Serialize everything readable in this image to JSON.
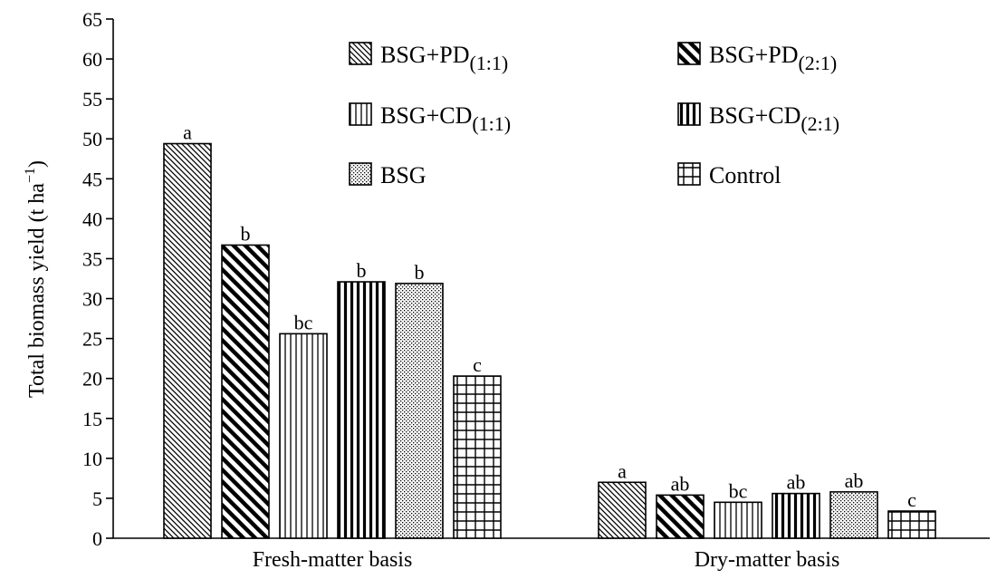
{
  "chart_data": {
    "type": "bar",
    "title": "",
    "xlabel": "",
    "ylabel": "Total biomass yield (t ha",
    "ylabel_superscript": "−1",
    "ylabel_close": ")",
    "ylim": [
      0,
      65
    ],
    "yticks": [
      0,
      5,
      10,
      15,
      20,
      25,
      30,
      35,
      40,
      45,
      50,
      55,
      60,
      65
    ],
    "grid": false,
    "legend_placement": "top-right",
    "categories": [
      "Fresh-matter basis",
      "Dry-matter basis"
    ],
    "series": [
      {
        "name": "BSG+PD",
        "subscript": "(1:1)",
        "pattern": "diag-fine",
        "values": [
          49.4,
          7.0
        ],
        "letters": [
          "a",
          "a"
        ]
      },
      {
        "name": "BSG+PD",
        "subscript": "(2:1)",
        "pattern": "diag-bold",
        "values": [
          36.7,
          5.4
        ],
        "letters": [
          "b",
          "ab"
        ]
      },
      {
        "name": "BSG+CD",
        "subscript": "(1:1)",
        "pattern": "vert-fine",
        "values": [
          25.6,
          4.5
        ],
        "letters": [
          "bc",
          "bc"
        ]
      },
      {
        "name": "BSG+CD",
        "subscript": "(2:1)",
        "pattern": "vert-bold",
        "values": [
          32.1,
          5.6
        ],
        "letters": [
          "b",
          "ab"
        ]
      },
      {
        "name": "BSG",
        "subscript": "",
        "pattern": "dots",
        "values": [
          31.9,
          5.8
        ],
        "letters": [
          "b",
          "ab"
        ]
      },
      {
        "name": "Control",
        "subscript": "",
        "pattern": "grid",
        "values": [
          20.3,
          3.4
        ],
        "letters": [
          "c",
          "c"
        ]
      }
    ]
  }
}
